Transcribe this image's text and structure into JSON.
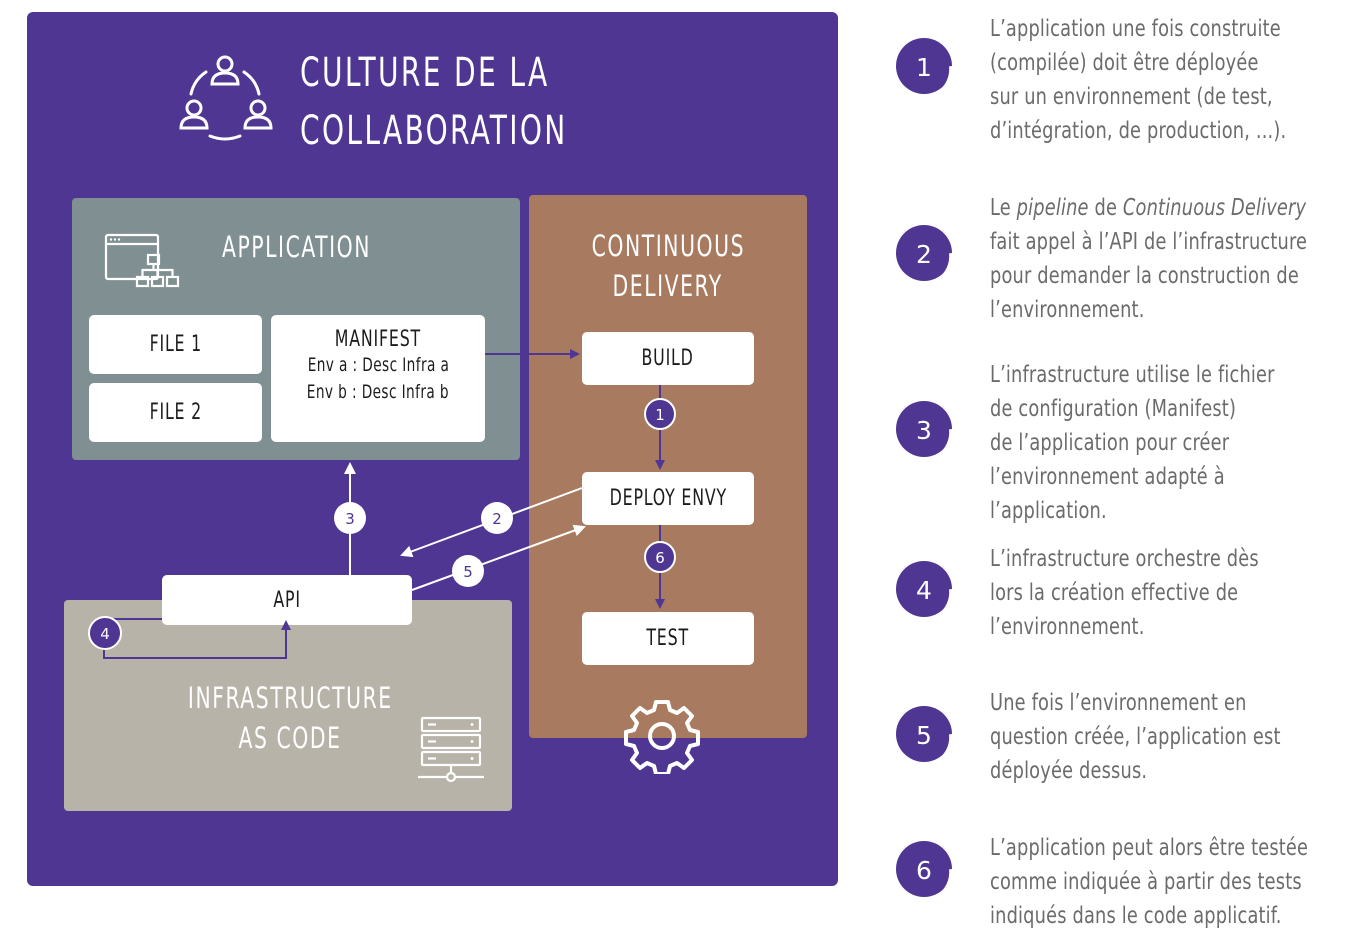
{
  "title_lines": [
    "CULTURE DE LA",
    "COLLABORATION"
  ],
  "application": {
    "title": "APPLICATION",
    "file1": "FILE 1",
    "file2": "FILE 2",
    "manifest": {
      "title": "MANIFEST",
      "line1": "Env a : Desc Infra a",
      "line2": "Env b : Desc Infra b"
    }
  },
  "continuous_delivery": {
    "title_lines": [
      "CONTINUOUS",
      "DELIVERY"
    ],
    "build": "BUILD",
    "deploy": "DEPLOY ENVY",
    "test": "TEST"
  },
  "infrastructure": {
    "title_lines": [
      "INFRASTRUCTURE",
      "AS CODE"
    ],
    "api": "API"
  },
  "diagram_badges": [
    "1",
    "2",
    "3",
    "4",
    "5",
    "6"
  ],
  "legend": [
    {
      "num": "1",
      "lines": [
        "L’application une fois construite",
        "(compilée) doit être déployée",
        "sur un environnement (de test,",
        "d’intégration, de production, ...)."
      ]
    },
    {
      "num": "2",
      "parts": {
        "a": "Le ",
        "b": "pipeline",
        "c": " de ",
        "d": "Continuous Delivery"
      },
      "lines": [
        "fait appel à l’API de l’infrastructure",
        "pour demander la construction de",
        "l’environnement."
      ]
    },
    {
      "num": "3",
      "lines": [
        "L’infrastructure utilise le fichier",
        "de configuration (Manifest)",
        "de l’application pour créer",
        "l’environnement adapté à",
        "l’application."
      ]
    },
    {
      "num": "4",
      "lines": [
        "L’infrastructure orchestre dès",
        "lors la création effective de",
        "l’environnement."
      ]
    },
    {
      "num": "5",
      "lines": [
        "Une fois l’environnement en",
        "question créée, l’application est",
        "déployée dessus."
      ]
    },
    {
      "num": "6",
      "lines": [
        "L’application peut alors être testée",
        "comme indiquée à partir des tests",
        "indiqués dans le code applicatif."
      ]
    }
  ],
  "colors": {
    "purple": "#4f3693",
    "app_gray": "#7f8f92",
    "cd_brown": "#a87a5f",
    "iac_beige": "#b8b3a8"
  },
  "icons": [
    "collaboration-icon",
    "application-icon",
    "server-icon",
    "gear-icon"
  ]
}
